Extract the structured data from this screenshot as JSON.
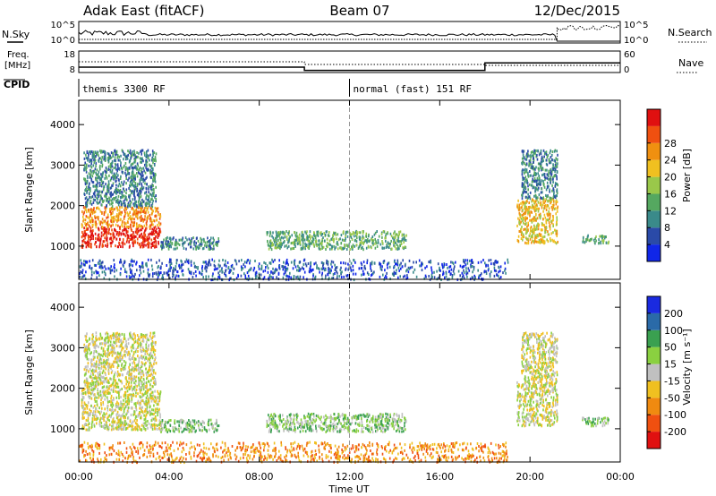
{
  "header": {
    "station": "Adak East (fitACF)",
    "beam": "Beam 07",
    "date": "12/Dec/2015"
  },
  "top_panel": {
    "left_label": "N.Sky",
    "right_label": "N.Search",
    "left_ticks": [
      "10^5",
      "10^0"
    ],
    "right_ticks": [
      "10^5",
      "10^0"
    ]
  },
  "freq_panel": {
    "left_label_line1": "Freq.",
    "left_label_line2": "[MHz]",
    "right_label": "Nave",
    "left_ticks": [
      "18",
      "8"
    ],
    "right_ticks": [
      "60",
      "0"
    ],
    "freq_steps": [
      {
        "t0": 0.0,
        "t1": 10.0,
        "mhz": 10.5
      },
      {
        "t0": 10.0,
        "t1": 18.0,
        "mhz": 9.0
      },
      {
        "t0": 18.0,
        "t1": 24.0,
        "mhz": 12.5
      }
    ]
  },
  "cpid": {
    "label": "CPID",
    "segments": [
      {
        "t0": 0.0,
        "text": "themis 3300 RF"
      },
      {
        "t0": 12.0,
        "text": "normal (fast) 151 RF"
      }
    ]
  },
  "chart_data": [
    {
      "type": "heatmap",
      "quantity": "power",
      "xlabel": "",
      "ylabel": "Slant Range [km]",
      "xlim": [
        0,
        24
      ],
      "ylim": [
        180,
        4600
      ],
      "yticks": [
        "1000",
        "2000",
        "3000",
        "4000"
      ],
      "colorbar_label": "Power [dB]",
      "colorbar_ticks": [
        "4",
        "8",
        "12",
        "16",
        "20",
        "24",
        "28"
      ],
      "colorbar_colors": [
        "#1026e8",
        "#2a4aa8",
        "#3a8a8a",
        "#55a860",
        "#9ac84a",
        "#f0c020",
        "#f09010",
        "#f05010",
        "#e01010"
      ],
      "scatter_regions": [
        {
          "t0": 0.1,
          "t1": 3.6,
          "r0": 1000,
          "r1": 1500,
          "level": 8
        },
        {
          "t0": 0.1,
          "t1": 3.6,
          "r0": 1500,
          "r1": 2000,
          "level": 6
        },
        {
          "t0": 0.2,
          "t1": 3.4,
          "r0": 2000,
          "r1": 3400,
          "level": 2
        },
        {
          "t0": 3.6,
          "t1": 6.2,
          "r0": 950,
          "r1": 1250,
          "level": 2
        },
        {
          "t0": 8.3,
          "t1": 14.5,
          "r0": 950,
          "r1": 1400,
          "level": 3
        },
        {
          "t0": 19.4,
          "t1": 21.2,
          "r0": 1100,
          "r1": 2200,
          "level": 5
        },
        {
          "t0": 19.6,
          "t1": 21.2,
          "r0": 2200,
          "r1": 3400,
          "level": 2
        },
        {
          "t0": 22.3,
          "t1": 23.5,
          "r0": 1100,
          "r1": 1300,
          "level": 3
        },
        {
          "t0": 0.0,
          "t1": 19.0,
          "r0": 200,
          "r1": 700,
          "level": 1
        }
      ]
    },
    {
      "type": "heatmap",
      "quantity": "velocity",
      "xlabel": "Time UT",
      "ylabel": "Slant Range [km]",
      "xlim": [
        0,
        24
      ],
      "ylim": [
        180,
        4600
      ],
      "xticks": [
        "00:00",
        "04:00",
        "08:00",
        "12:00",
        "16:00",
        "20:00",
        "00:00"
      ],
      "yticks": [
        "1000",
        "2000",
        "3000",
        "4000"
      ],
      "colorbar_label": "Velocity [m s⁻¹]",
      "colorbar_ticks": [
        "-200",
        "-100",
        "-50",
        "-15",
        "15",
        "50",
        "100",
        "200"
      ],
      "colorbar_colors": [
        "#e01010",
        "#f05010",
        "#f08a10",
        "#f0c020",
        "#c0c0c0",
        "#8ad040",
        "#3aa050",
        "#2a6aa8",
        "#1a2ae0"
      ],
      "scatter_regions": [
        {
          "t0": 0.1,
          "t1": 3.6,
          "r0": 1000,
          "r1": 2000,
          "level": 4
        },
        {
          "t0": 0.2,
          "t1": 3.4,
          "r0": 2000,
          "r1": 3400,
          "level": 4
        },
        {
          "t0": 3.6,
          "t1": 6.2,
          "r0": 950,
          "r1": 1250,
          "level": 5
        },
        {
          "t0": 8.3,
          "t1": 14.5,
          "r0": 950,
          "r1": 1400,
          "level": 5
        },
        {
          "t0": 19.4,
          "t1": 21.2,
          "r0": 1100,
          "r1": 2200,
          "level": 4
        },
        {
          "t0": 19.6,
          "t1": 21.2,
          "r0": 2200,
          "r1": 3400,
          "level": 4
        },
        {
          "t0": 22.3,
          "t1": 23.5,
          "r0": 1100,
          "r1": 1300,
          "level": 5
        },
        {
          "t0": 0.0,
          "t1": 19.0,
          "r0": 200,
          "r1": 700,
          "level": 2
        }
      ]
    }
  ]
}
